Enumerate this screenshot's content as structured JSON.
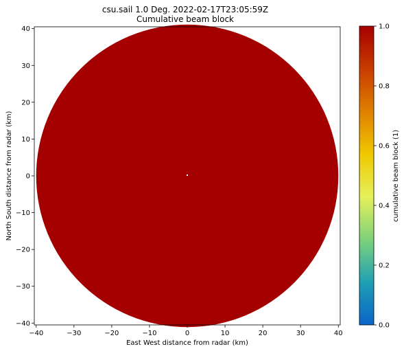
{
  "chart_data": {
    "type": "heatmap",
    "title": "csu.sail 1.0 Deg. 2022-02-17T23:05:59Z",
    "subtitle": "Cumulative beam block",
    "xlabel": "East West distance from radar (km)",
    "ylabel": "North South distance from radar (km)",
    "xlim": [
      -40.5,
      40.5
    ],
    "ylim": [
      -40.5,
      40.5
    ],
    "x_ticks": [
      -40,
      -30,
      -20,
      -10,
      0,
      10,
      20,
      30,
      40
    ],
    "y_ticks": [
      -40,
      -30,
      -20,
      -10,
      0,
      10,
      20,
      30,
      40
    ],
    "grid": false,
    "field": {
      "shape": "disk",
      "center": [
        0,
        0
      ],
      "radius_km": 40,
      "value": 1.0,
      "color": "#a50000"
    },
    "colorbar": {
      "label": "cumulative beam block (1)",
      "range": [
        0.0,
        1.0
      ],
      "ticks": [
        0.0,
        0.2,
        0.4,
        0.6,
        0.8,
        1.0
      ],
      "tick_labels": [
        "0.0",
        "0.2",
        "0.4",
        "0.6",
        "0.8",
        "1.0"
      ],
      "colors": [
        "#0a64c8",
        "#1fa0b4",
        "#7ed27a",
        "#e6f05a",
        "#f0c800",
        "#e08000",
        "#c83c00",
        "#a50000"
      ]
    }
  }
}
